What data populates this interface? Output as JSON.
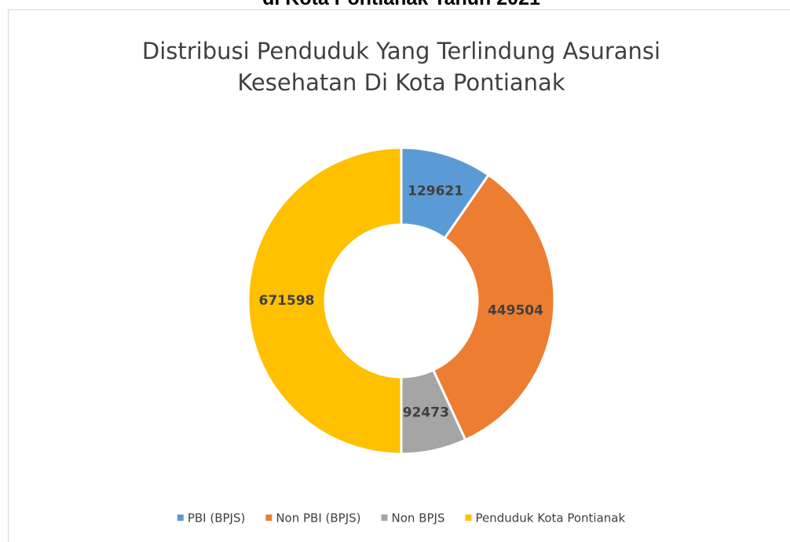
{
  "page_heading": "di Kota Pontianak Tahun 2021",
  "chart_data": {
    "type": "donut",
    "title": [
      "Distribusi Penduduk Yang Terlindung Asuransi",
      "Kesehatan Di Kota Pontianak"
    ],
    "categories": [
      "PBI (BPJS)",
      "Non PBI (BPJS)",
      "Non BPJS",
      "Penduduk Kota Pontianak"
    ],
    "values": [
      129621,
      449504,
      92473,
      671598
    ],
    "colors": [
      "#5b9bd5",
      "#ed7d31",
      "#a5a5a5",
      "#ffc000"
    ],
    "legend": "bottom"
  }
}
